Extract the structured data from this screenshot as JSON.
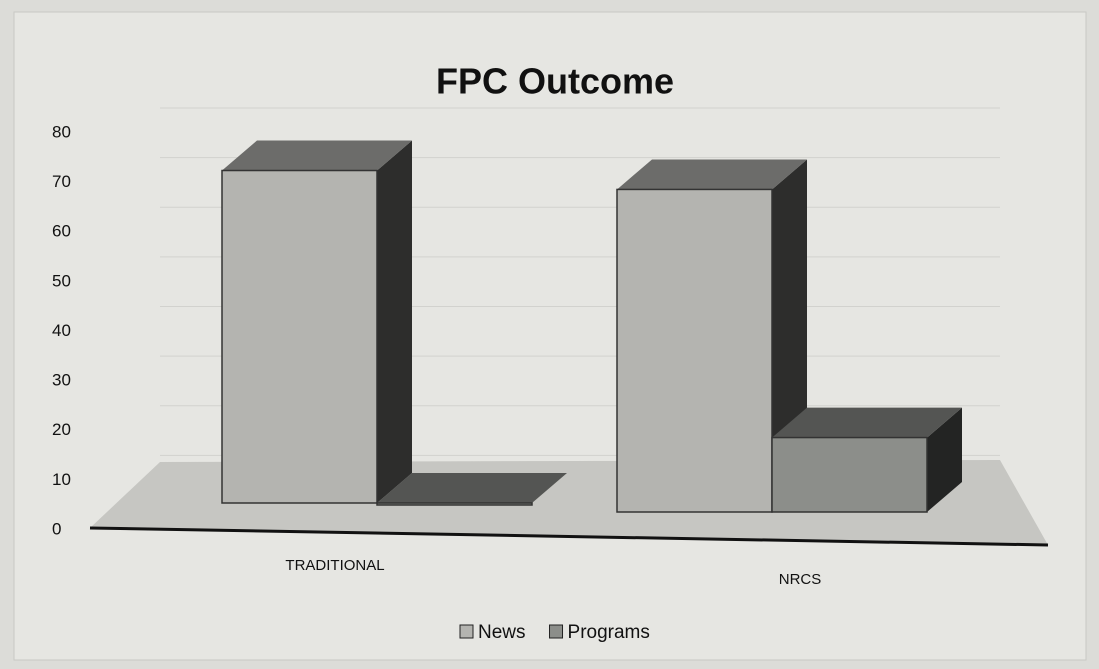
{
  "chart_data": {
    "type": "bar3d",
    "title": "FPC Outcome",
    "categories": [
      "TRADITIONAL",
      "NRCS"
    ],
    "series": [
      {
        "name": "News",
        "color": "#b4b4b0",
        "values": [
          67,
          65
        ]
      },
      {
        "name": "Programs",
        "color": "#8c8e8a",
        "values": [
          0,
          15
        ]
      }
    ],
    "ylim": [
      0,
      80
    ],
    "yticks": [
      0,
      10,
      20,
      30,
      40,
      50,
      60,
      70,
      80
    ],
    "grid": true,
    "legend": "bottom"
  }
}
